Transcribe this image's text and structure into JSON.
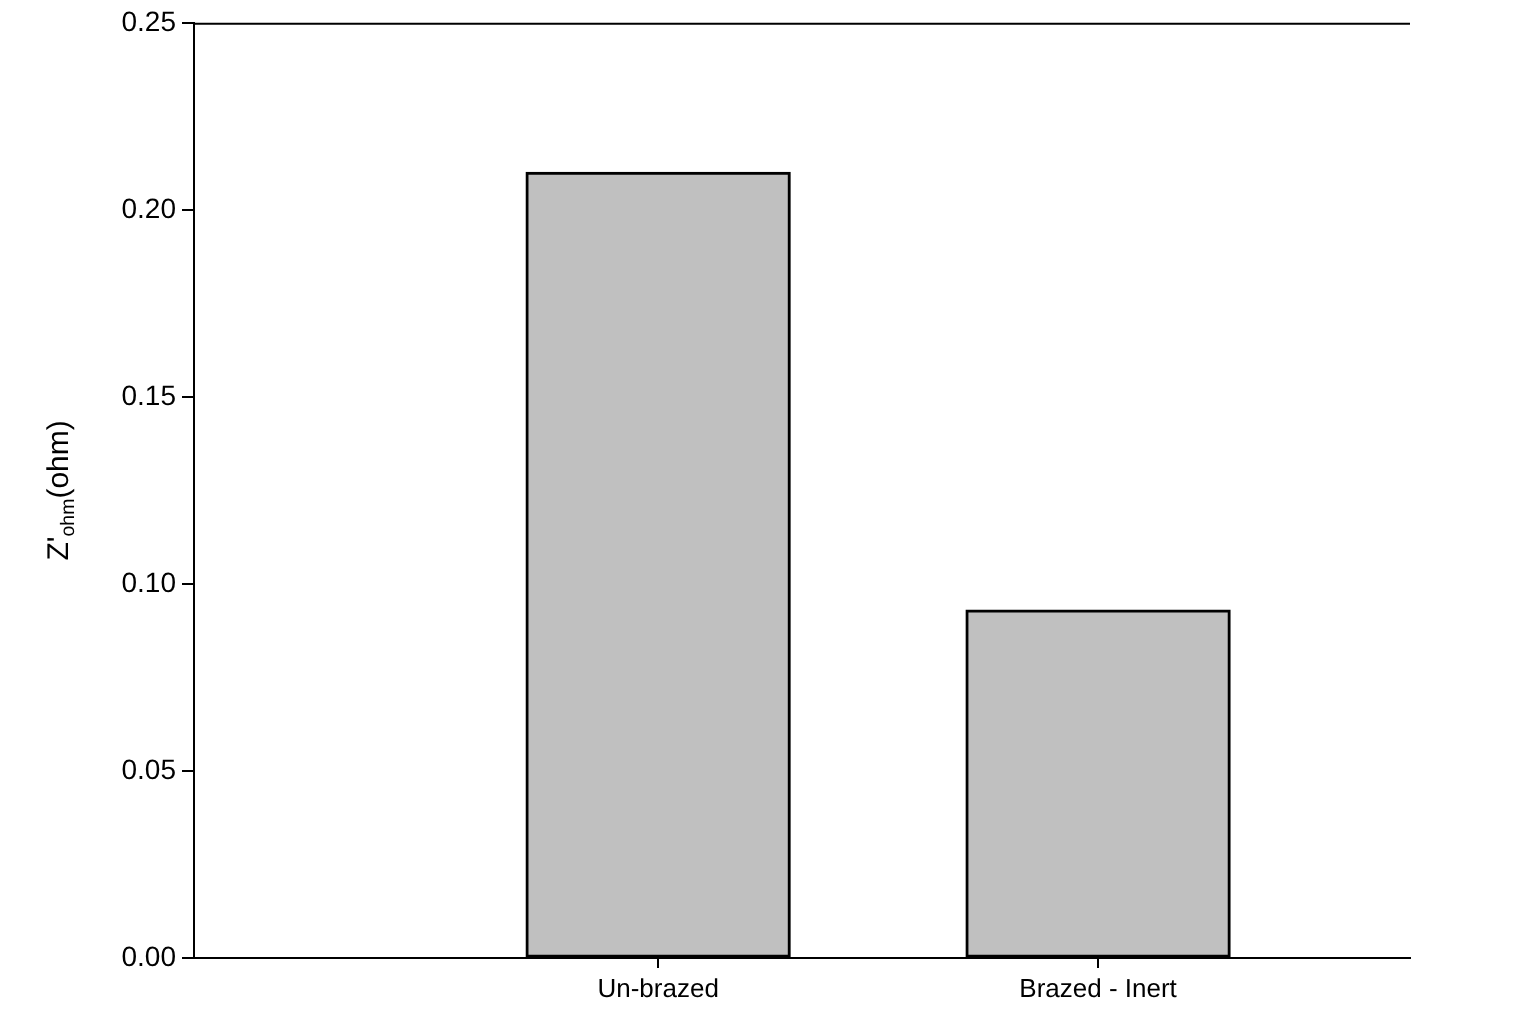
{
  "chart_data": {
    "type": "bar",
    "ylabel": "Z'$_{ohm}$(ohm)",
    "categories": [
      "Un-brazed",
      "Brazed - Inert"
    ],
    "values": [
      0.21,
      0.093
    ],
    "color": "#c0c0c0",
    "ylim": [
      0,
      0.25
    ],
    "yticks": [
      {
        "value": 0,
        "label": "0.00"
      },
      {
        "value": 0.05,
        "label": "0.05"
      },
      {
        "value": 0.1,
        "label": "0.10"
      },
      {
        "value": 0.15,
        "label": "0.15"
      },
      {
        "value": 0.2,
        "label": "0.20"
      },
      {
        "value": 0.25,
        "label": "0.25"
      }
    ],
    "grid": false,
    "legend": false
  }
}
